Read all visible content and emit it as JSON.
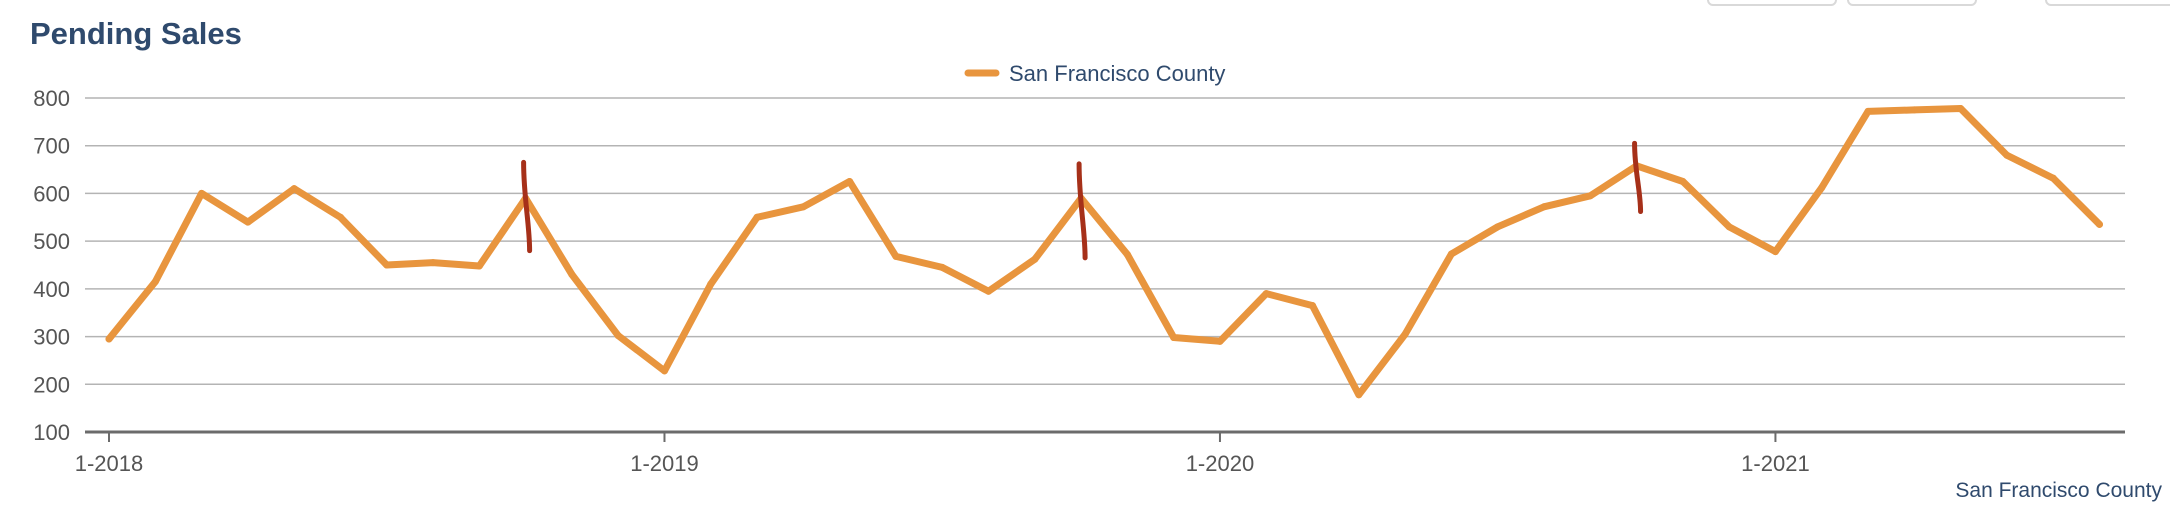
{
  "chart_data": {
    "type": "line",
    "title": "Pending Sales",
    "xlabel": "",
    "ylabel": "",
    "x_tick_labels": [
      "1-2018",
      "1-2019",
      "1-2020",
      "1-2021"
    ],
    "y_ticks": [
      100,
      200,
      300,
      400,
      500,
      600,
      700,
      800
    ],
    "ylim": [
      100,
      800
    ],
    "grid": true,
    "legend_position": "top-center",
    "source_label": "San Francisco County",
    "series": [
      {
        "name": "San Francisco County",
        "color": "#e8953e",
        "x": [
          "2018-01",
          "2018-02",
          "2018-03",
          "2018-04",
          "2018-05",
          "2018-06",
          "2018-07",
          "2018-08",
          "2018-09",
          "2018-10",
          "2018-11",
          "2018-12",
          "2019-01",
          "2019-02",
          "2019-03",
          "2019-04",
          "2019-05",
          "2019-06",
          "2019-07",
          "2019-08",
          "2019-09",
          "2019-10",
          "2019-11",
          "2019-12",
          "2020-01",
          "2020-02",
          "2020-03",
          "2020-04",
          "2020-05",
          "2020-06",
          "2020-07",
          "2020-08",
          "2020-09",
          "2020-10",
          "2020-11",
          "2020-12",
          "2021-01",
          "2021-02",
          "2021-03",
          "2021-04",
          "2021-05",
          "2021-06",
          "2021-07",
          "2021-08"
        ],
        "values": [
          295,
          415,
          600,
          540,
          610,
          550,
          450,
          455,
          448,
          590,
          430,
          302,
          228,
          410,
          550,
          572,
          625,
          468,
          445,
          395,
          462,
          590,
          472,
          298,
          290,
          390,
          365,
          178,
          305,
          473,
          530,
          572,
          595,
          658,
          625,
          530,
          478,
          612,
          772,
          775,
          778,
          680,
          632,
          535
        ]
      }
    ],
    "annotations": [
      {
        "type": "vertical-mark",
        "x": "2018-10",
        "from": 480,
        "to": 665,
        "color": "#a63019"
      },
      {
        "type": "vertical-mark",
        "x": "2019-10",
        "from": 465,
        "to": 662,
        "color": "#a63019"
      },
      {
        "type": "vertical-mark",
        "x": "2020-10",
        "from": 562,
        "to": 705,
        "color": "#a63019"
      }
    ]
  }
}
